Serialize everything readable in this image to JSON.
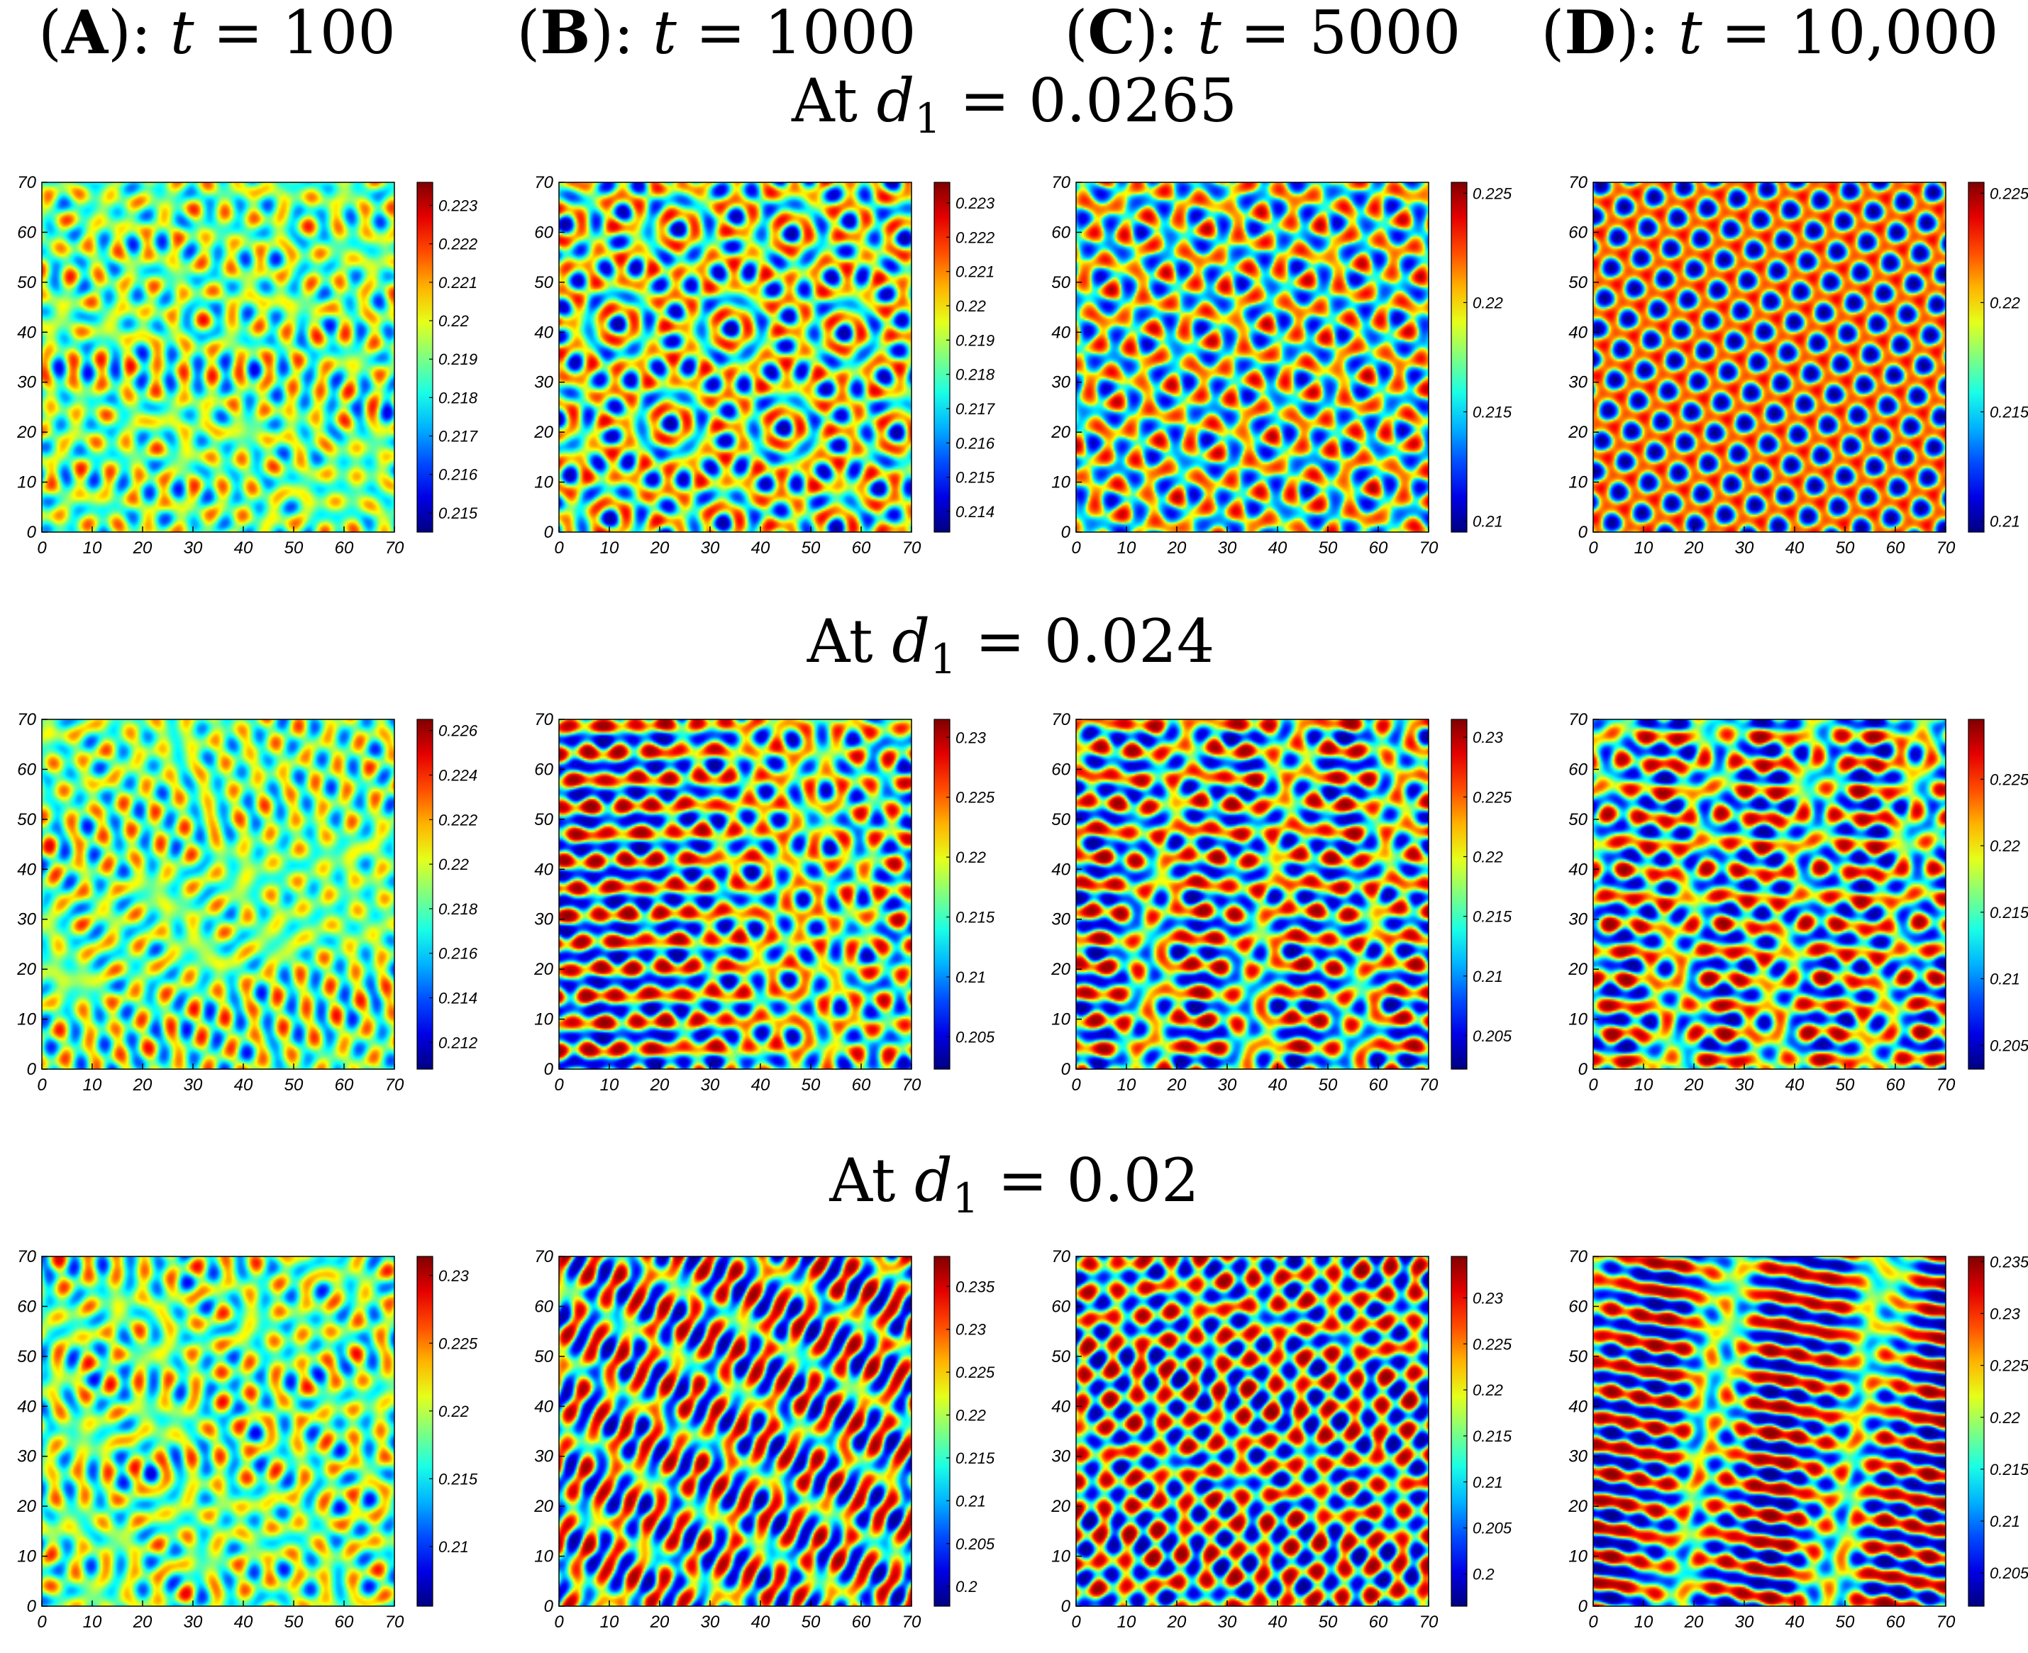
{
  "columns": [
    {
      "letter": "A",
      "var": "t",
      "eq": " = ",
      "value": "100"
    },
    {
      "letter": "B",
      "var": "t",
      "eq": " = ",
      "value": "1000"
    },
    {
      "letter": "C",
      "var": "t",
      "eq": " = ",
      "value": "5000"
    },
    {
      "letter": "D",
      "var": "t",
      "eq": " = ",
      "value": "10,000"
    }
  ],
  "rows": [
    {
      "prefix": "At ",
      "var": "d",
      "sub": "1",
      "eq": " = ",
      "value": "0.0265"
    },
    {
      "prefix": "At ",
      "var": "d",
      "sub": "1",
      "eq": " = ",
      "value": "0.024"
    },
    {
      "prefix": "At ",
      "var": "d",
      "sub": "1",
      "eq": " = ",
      "value": "0.02"
    }
  ],
  "chart_data": [
    {
      "type": "heatmap",
      "row": 0,
      "col": 0,
      "pattern": "mixed",
      "xlim": [
        0,
        70
      ],
      "ylim": [
        0,
        70
      ],
      "x_ticks": [
        "0",
        "10",
        "20",
        "30",
        "40",
        "50",
        "60",
        "70"
      ],
      "y_ticks": [
        "0",
        "10",
        "20",
        "30",
        "40",
        "50",
        "60",
        "70"
      ],
      "clim": [
        0.2145,
        0.2236
      ],
      "colorbar_ticks": [
        "0.215",
        "0.216",
        "0.217",
        "0.218",
        "0.219",
        "0.22",
        "0.221",
        "0.222",
        "0.223"
      ]
    },
    {
      "type": "heatmap",
      "row": 0,
      "col": 1,
      "pattern": "spots_mixed",
      "xlim": [
        0,
        70
      ],
      "ylim": [
        0,
        70
      ],
      "x_ticks": [
        "0",
        "10",
        "20",
        "30",
        "40",
        "50",
        "60",
        "70"
      ],
      "y_ticks": [
        "0",
        "10",
        "20",
        "30",
        "40",
        "50",
        "60",
        "70"
      ],
      "clim": [
        0.2134,
        0.2236
      ],
      "colorbar_ticks": [
        "0.214",
        "0.215",
        "0.216",
        "0.217",
        "0.218",
        "0.219",
        "0.22",
        "0.221",
        "0.222",
        "0.223"
      ]
    },
    {
      "type": "heatmap",
      "row": 0,
      "col": 2,
      "pattern": "spots",
      "xlim": [
        0,
        70
      ],
      "ylim": [
        0,
        70
      ],
      "x_ticks": [
        "0",
        "10",
        "20",
        "30",
        "40",
        "50",
        "60",
        "70"
      ],
      "y_ticks": [
        "0",
        "10",
        "20",
        "30",
        "40",
        "50",
        "60",
        "70"
      ],
      "clim": [
        0.2095,
        0.2255
      ],
      "colorbar_ticks": [
        "0.21",
        "0.215",
        "0.22",
        "0.225"
      ]
    },
    {
      "type": "heatmap",
      "row": 0,
      "col": 3,
      "pattern": "spots_regular",
      "xlim": [
        0,
        70
      ],
      "ylim": [
        0,
        70
      ],
      "x_ticks": [
        "0",
        "10",
        "20",
        "30",
        "40",
        "50",
        "60",
        "70"
      ],
      "y_ticks": [
        "0",
        "10",
        "20",
        "30",
        "40",
        "50",
        "60",
        "70"
      ],
      "clim": [
        0.2095,
        0.2255
      ],
      "colorbar_ticks": [
        "0.21",
        "0.215",
        "0.22",
        "0.225"
      ]
    },
    {
      "type": "heatmap",
      "row": 1,
      "col": 0,
      "pattern": "mixed",
      "xlim": [
        0,
        70
      ],
      "ylim": [
        0,
        70
      ],
      "x_ticks": [
        "0",
        "10",
        "20",
        "30",
        "40",
        "50",
        "60",
        "70"
      ],
      "y_ticks": [
        "0",
        "10",
        "20",
        "30",
        "40",
        "50",
        "60",
        "70"
      ],
      "clim": [
        0.2108,
        0.2265
      ],
      "colorbar_ticks": [
        "0.212",
        "0.214",
        "0.216",
        "0.218",
        "0.22",
        "0.222",
        "0.224",
        "0.226"
      ]
    },
    {
      "type": "heatmap",
      "row": 1,
      "col": 1,
      "pattern": "spots_stripes",
      "xlim": [
        0,
        70
      ],
      "ylim": [
        0,
        70
      ],
      "x_ticks": [
        "0",
        "10",
        "20",
        "30",
        "40",
        "50",
        "60",
        "70"
      ],
      "y_ticks": [
        "0",
        "10",
        "20",
        "30",
        "40",
        "50",
        "60",
        "70"
      ],
      "clim": [
        0.2023,
        0.2315
      ],
      "colorbar_ticks": [
        "0.205",
        "0.21",
        "0.215",
        "0.22",
        "0.225",
        "0.23"
      ]
    },
    {
      "type": "heatmap",
      "row": 1,
      "col": 2,
      "pattern": "spots_stripes",
      "xlim": [
        0,
        70
      ],
      "ylim": [
        0,
        70
      ],
      "x_ticks": [
        "0",
        "10",
        "20",
        "30",
        "40",
        "50",
        "60",
        "70"
      ],
      "y_ticks": [
        "0",
        "10",
        "20",
        "30",
        "40",
        "50",
        "60",
        "70"
      ],
      "clim": [
        0.2022,
        0.2315
      ],
      "colorbar_ticks": [
        "0.205",
        "0.21",
        "0.215",
        "0.22",
        "0.225",
        "0.23"
      ]
    },
    {
      "type": "heatmap",
      "row": 1,
      "col": 3,
      "pattern": "spots_stripes",
      "xlim": [
        0,
        70
      ],
      "ylim": [
        0,
        70
      ],
      "x_ticks": [
        "0",
        "10",
        "20",
        "30",
        "40",
        "50",
        "60",
        "70"
      ],
      "y_ticks": [
        "0",
        "10",
        "20",
        "30",
        "40",
        "50",
        "60",
        "70"
      ],
      "clim": [
        0.2032,
        0.2295
      ],
      "colorbar_ticks": [
        "0.205",
        "0.21",
        "0.215",
        "0.22",
        "0.225"
      ]
    },
    {
      "type": "heatmap",
      "row": 2,
      "col": 0,
      "pattern": "mixed",
      "xlim": [
        0,
        70
      ],
      "ylim": [
        0,
        70
      ],
      "x_ticks": [
        "0",
        "10",
        "20",
        "30",
        "40",
        "50",
        "60",
        "70"
      ],
      "y_ticks": [
        "0",
        "10",
        "20",
        "30",
        "40",
        "50",
        "60",
        "70"
      ],
      "clim": [
        0.2056,
        0.2314
      ],
      "colorbar_ticks": [
        "0.21",
        "0.215",
        "0.22",
        "0.225",
        "0.23"
      ]
    },
    {
      "type": "heatmap",
      "row": 2,
      "col": 1,
      "pattern": "stripes",
      "xlim": [
        0,
        70
      ],
      "ylim": [
        0,
        70
      ],
      "x_ticks": [
        "0",
        "10",
        "20",
        "30",
        "40",
        "50",
        "60",
        "70"
      ],
      "y_ticks": [
        "0",
        "10",
        "20",
        "30",
        "40",
        "50",
        "60",
        "70"
      ],
      "clim": [
        0.1977,
        0.2385
      ],
      "colorbar_ticks": [
        "0.2",
        "0.205",
        "0.21",
        "0.215",
        "0.22",
        "0.225",
        "0.23",
        "0.235"
      ]
    },
    {
      "type": "heatmap",
      "row": 2,
      "col": 2,
      "pattern": "stripes",
      "xlim": [
        0,
        70
      ],
      "ylim": [
        0,
        70
      ],
      "x_ticks": [
        "0",
        "10",
        "20",
        "30",
        "40",
        "50",
        "60",
        "70"
      ],
      "y_ticks": [
        "0",
        "10",
        "20",
        "30",
        "40",
        "50",
        "60",
        "70"
      ],
      "clim": [
        0.1965,
        0.2345
      ],
      "colorbar_ticks": [
        "0.2",
        "0.205",
        "0.21",
        "0.215",
        "0.22",
        "0.225",
        "0.23"
      ]
    },
    {
      "type": "heatmap",
      "row": 2,
      "col": 3,
      "pattern": "stripes",
      "xlim": [
        0,
        70
      ],
      "ylim": [
        0,
        70
      ],
      "x_ticks": [
        "0",
        "10",
        "20",
        "30",
        "40",
        "50",
        "60",
        "70"
      ],
      "y_ticks": [
        "0",
        "10",
        "20",
        "30",
        "40",
        "50",
        "60",
        "70"
      ],
      "clim": [
        0.2018,
        0.2355
      ],
      "colorbar_ticks": [
        "0.205",
        "0.21",
        "0.215",
        "0.22",
        "0.225",
        "0.23",
        "0.235"
      ]
    }
  ]
}
